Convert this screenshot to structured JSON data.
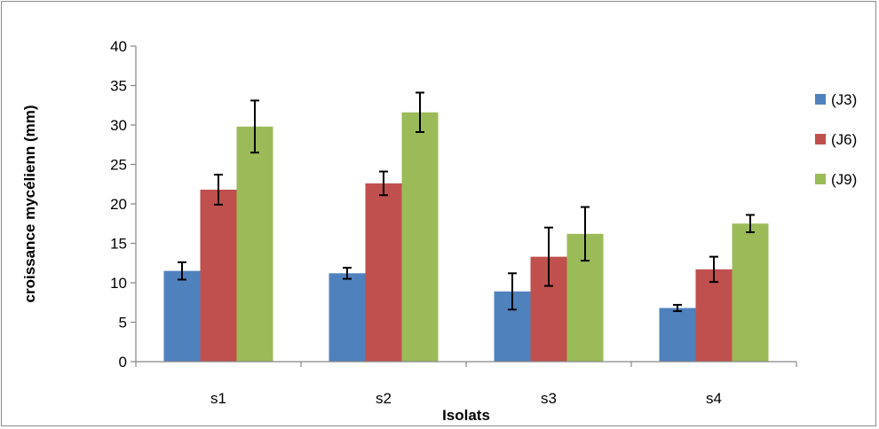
{
  "chart_data": {
    "type": "bar",
    "title": "",
    "xlabel": "Isolats",
    "ylabel": "croissance mycélienn (mm)",
    "categories": [
      "s1",
      "s2",
      "s3",
      "s4"
    ],
    "ylim": [
      0,
      40
    ],
    "yticks": [
      0,
      5,
      10,
      15,
      20,
      25,
      30,
      35,
      40
    ],
    "grid": false,
    "legend_position": "right",
    "series": [
      {
        "name": "(J3)",
        "color": "#4f81bd",
        "values": [
          11.5,
          11.2,
          8.9,
          6.8
        ],
        "errors": [
          1.1,
          0.7,
          2.3,
          0.4
        ]
      },
      {
        "name": " (J6)",
        "color": "#c0504d",
        "values": [
          21.8,
          22.6,
          13.3,
          11.7
        ],
        "errors": [
          1.9,
          1.5,
          3.7,
          1.6
        ]
      },
      {
        "name": "(J9)",
        "color": "#9bbb59",
        "values": [
          29.8,
          31.6,
          16.2,
          17.5
        ],
        "errors": [
          3.3,
          2.5,
          3.4,
          1.1
        ]
      }
    ]
  }
}
